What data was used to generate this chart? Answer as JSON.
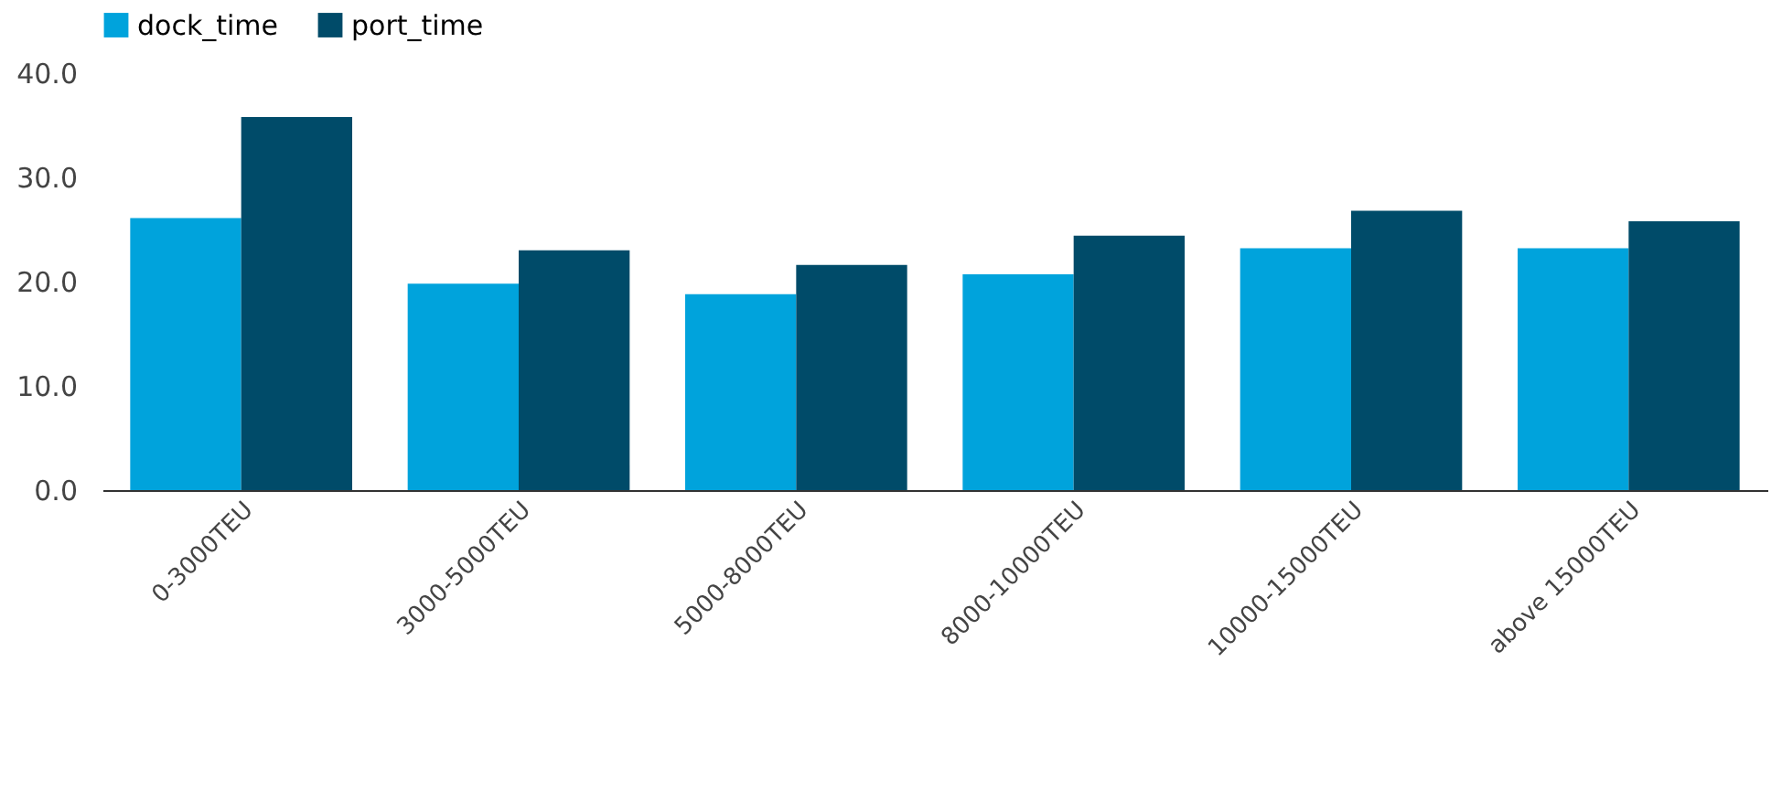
{
  "chart_data": {
    "type": "bar",
    "categories": [
      "0-3000TEU",
      "3000-5000TEU",
      "5000-8000TEU",
      "8000-10000TEU",
      "10000-15000TEU",
      "above 15000TEU"
    ],
    "series": [
      {
        "name": "dock_time",
        "color": "#00a3dc",
        "values": [
          26.1,
          19.8,
          18.8,
          20.7,
          23.2,
          23.2
        ]
      },
      {
        "name": "port_time",
        "color": "#004b69",
        "values": [
          35.8,
          23.0,
          21.6,
          24.4,
          26.8,
          25.8
        ]
      }
    ],
    "ylim": [
      0,
      40
    ],
    "yticks": [
      {
        "value": 0,
        "label": "0.0"
      },
      {
        "value": 10,
        "label": "10.0"
      },
      {
        "value": 20,
        "label": "20.0"
      },
      {
        "value": 30,
        "label": "30.0"
      },
      {
        "value": 40,
        "label": "40.0"
      }
    ],
    "grid": false,
    "legend": "top"
  }
}
